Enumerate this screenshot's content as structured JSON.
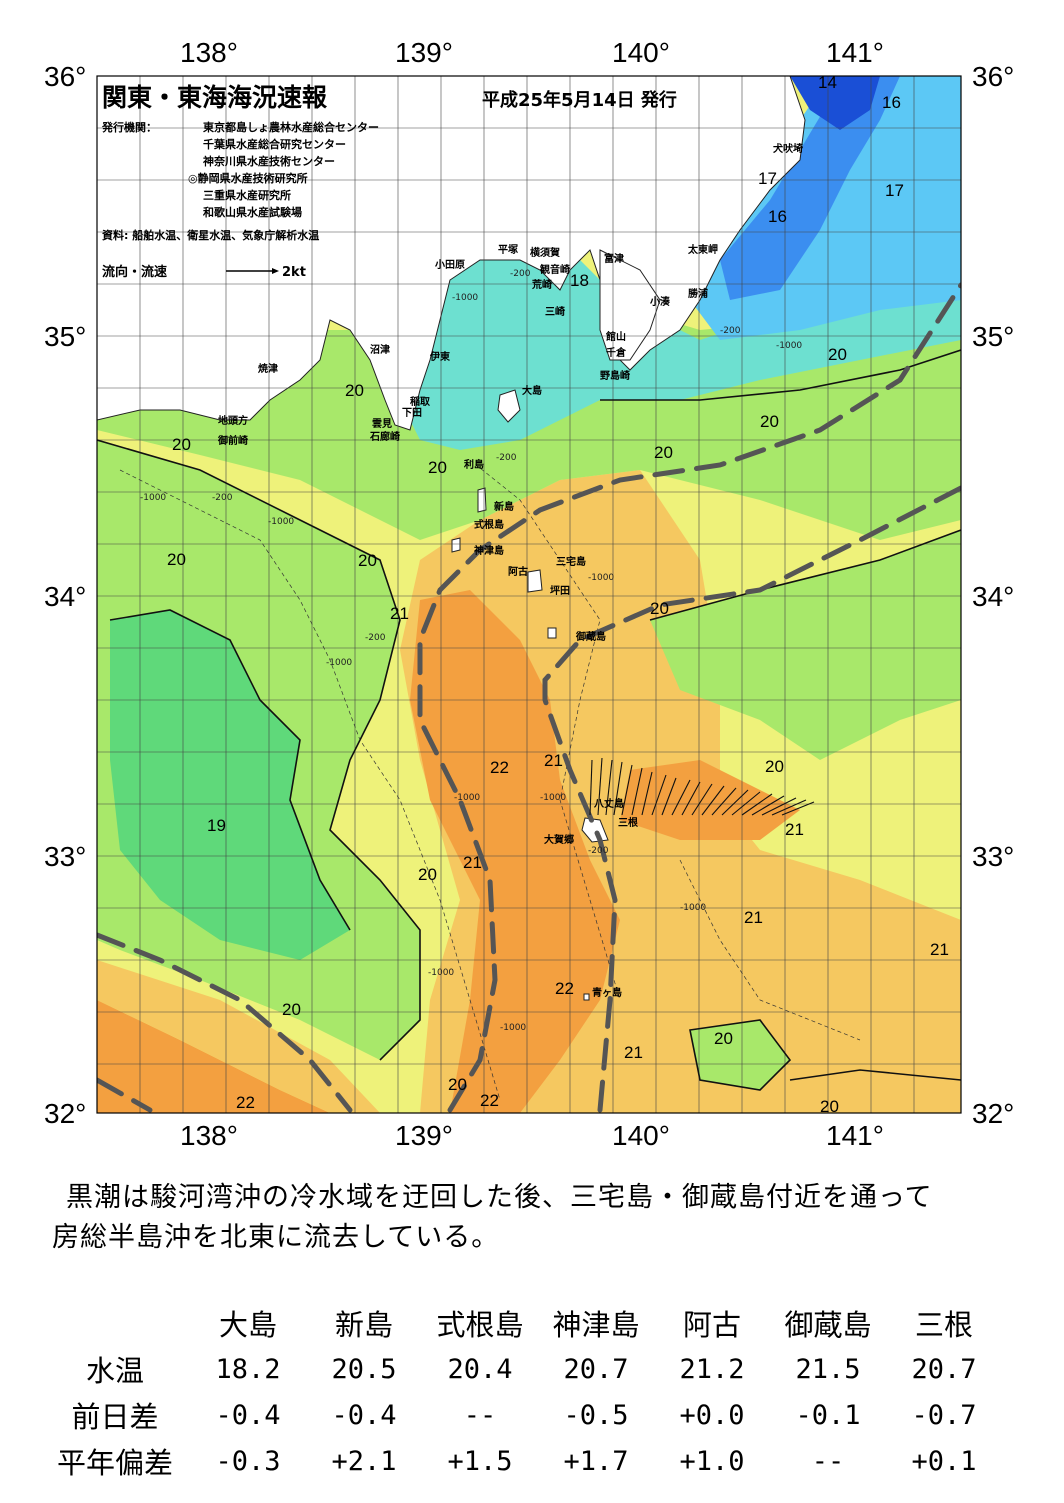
{
  "header": {
    "title": "関東・東海海況速報",
    "date": "平成25年5月14日 発行",
    "publisher_label": "発行機関：",
    "publishers": [
      "東京都島しょ農林水産総合センター",
      "千葉県水産総合研究センター",
      "神奈川県水産技術センター",
      "◎静岡県水産技術研究所",
      "三重県水産研究所",
      "和歌山県水産試験場"
    ],
    "source": "資料: 船舶水温、衛星水温、気象庁解析水温",
    "flow_legend_label": "流向・流速",
    "flow_legend_unit": "2kt"
  },
  "axes": {
    "lon_labels": [
      "138°",
      "139°",
      "140°",
      "141°"
    ],
    "lat_labels": [
      "36°",
      "35°",
      "34°",
      "33°",
      "32°"
    ]
  },
  "place_names": [
    "犬吠埼",
    "太東岬",
    "勝浦",
    "小湊",
    "富津",
    "観音崎",
    "横須賀",
    "平塚",
    "小田原",
    "荒崎",
    "三崎",
    "館山",
    "千倉",
    "野島崎",
    "沼津",
    "焼津",
    "伊東",
    "稲取",
    "下田",
    "雲見",
    "石廊崎",
    "地頭方",
    "御前崎",
    "大島",
    "利島",
    "新島",
    "式根島",
    "神津島",
    "三宅島",
    "阿古",
    "坪田",
    "御蔵島",
    "八丈島",
    "三根",
    "大賀郷",
    "青ヶ島"
  ],
  "isotherm_labels": [
    "14",
    "16",
    "17",
    "16",
    "17",
    "18",
    "20",
    "20",
    "20",
    "20",
    "20",
    "20",
    "20",
    "20",
    "21",
    "20",
    "22",
    "21",
    "20",
    "19",
    "21",
    "20",
    "21",
    "21",
    "22",
    "20",
    "20",
    "21",
    "20",
    "22",
    "22",
    "20",
    "21"
  ],
  "summary": {
    "text_line1": "黒潮は駿河湾沖の冷水域を迂回した後、三宅島・御蔵島付近を通って",
    "text_line2": "房総半島沖を北東に流去している。"
  },
  "observations": {
    "stations": [
      "大島",
      "新島",
      "式根島",
      "神津島",
      "阿古",
      "御蔵島",
      "三根"
    ],
    "rows": [
      {
        "label": "水温",
        "values": [
          "18.2",
          "20.5",
          "20.4",
          "20.7",
          "21.2",
          "21.5",
          "20.7"
        ]
      },
      {
        "label": "前日差",
        "values": [
          "-0.4",
          "-0.4",
          "--",
          "-0.5",
          "+0.0",
          "-0.1",
          "-0.7"
        ]
      },
      {
        "label": "平年偏差",
        "values": [
          "-0.3",
          "+2.1",
          "+1.5",
          "+1.7",
          "+1.0",
          "--",
          "+0.1"
        ]
      }
    ]
  },
  "colors": {
    "water_14": "#1a4fd6",
    "water_16": "#3b8ef0",
    "water_17": "#5cc8f5",
    "water_18": "#6de0d0",
    "water_19": "#5fd97a",
    "water_20": "#a8e86a",
    "water_20_5": "#eef27a",
    "water_21": "#f5c860",
    "water_22": "#f3a040",
    "kuroshio_axis": "#555555",
    "land": "#ffffff"
  }
}
